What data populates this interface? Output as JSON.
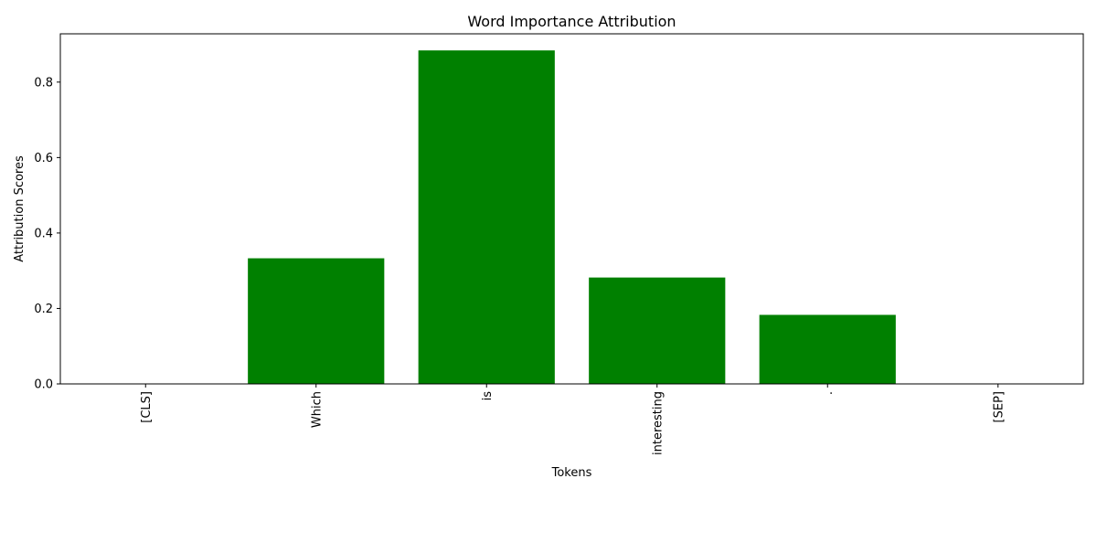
{
  "chart_data": {
    "type": "bar",
    "title": "Word Importance Attribution",
    "xlabel": "Tokens",
    "ylabel": "Attribution Scores",
    "categories": [
      "[CLS]",
      "Which",
      "is",
      "interesting",
      ".",
      "[SEP]"
    ],
    "values": [
      0.0,
      0.333,
      0.884,
      0.282,
      0.183,
      0.0
    ],
    "ylim": [
      0,
      0.928
    ],
    "yticks": [
      0.0,
      0.2,
      0.4,
      0.6,
      0.8
    ],
    "ytick_labels": [
      "0.0",
      "0.2",
      "0.4",
      "0.6",
      "0.8"
    ],
    "bar_color": "#008000",
    "grid": false
  }
}
